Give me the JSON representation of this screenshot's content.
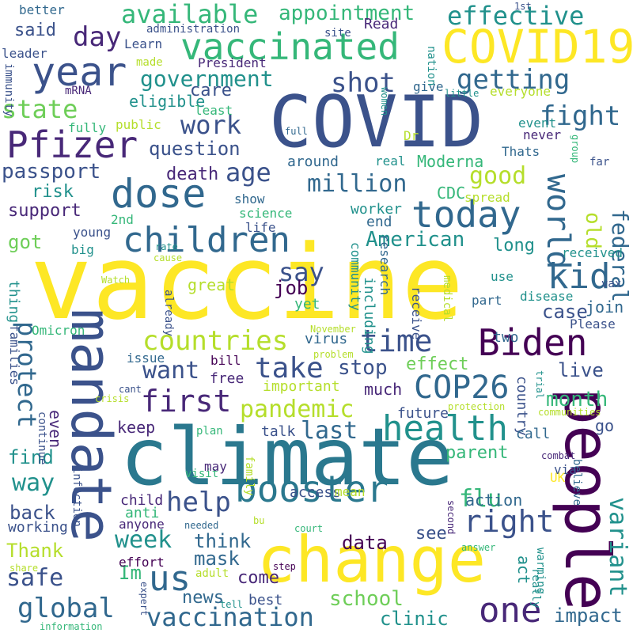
{
  "words": [
    {
      "text": "vaccine",
      "color": "#fde725"
    },
    {
      "text": "climate",
      "color": "#2a788e"
    },
    {
      "text": "COVID",
      "color": "#3b528b"
    },
    {
      "text": "change",
      "color": "#fde725"
    },
    {
      "text": "people",
      "color": "#440154"
    },
    {
      "text": "mandate",
      "color": "#3b528b"
    },
    {
      "text": "COVID19",
      "color": "#fde725"
    },
    {
      "text": "vaccinated",
      "color": "#35b779"
    },
    {
      "text": "booster",
      "color": "#2a788e"
    },
    {
      "text": "Biden",
      "color": "#440154"
    },
    {
      "text": "dose",
      "color": "#31688e"
    },
    {
      "text": "children",
      "color": "#31688e"
    },
    {
      "text": "year",
      "color": "#3b528b"
    },
    {
      "text": "today",
      "color": "#31688e"
    },
    {
      "text": "Pfizer",
      "color": "#482878"
    },
    {
      "text": "health",
      "color": "#21918c"
    },
    {
      "text": "COP26",
      "color": "#31688e"
    },
    {
      "text": "one",
      "color": "#482878"
    },
    {
      "text": "us",
      "color": "#31688e"
    },
    {
      "text": "kid",
      "color": "#31688e"
    },
    {
      "text": "world",
      "color": "#31688e"
    },
    {
      "text": "vaccination",
      "color": "#31688e"
    },
    {
      "text": "global",
      "color": "#31688e"
    },
    {
      "text": "time",
      "color": "#3b528b"
    },
    {
      "text": "first",
      "color": "#482878"
    },
    {
      "text": "help",
      "color": "#3b528b"
    },
    {
      "text": "right",
      "color": "#3b528b"
    },
    {
      "text": "take",
      "color": "#3b528b"
    },
    {
      "text": "countries",
      "color": "#b5de2b"
    },
    {
      "text": "available",
      "color": "#35b779"
    },
    {
      "text": "effective",
      "color": "#21918c"
    },
    {
      "text": "getting",
      "color": "#31688e"
    },
    {
      "text": "shot",
      "color": "#3b528b"
    },
    {
      "text": "government",
      "color": "#21918c"
    },
    {
      "text": "pandemic",
      "color": "#b5de2b"
    },
    {
      "text": "protect",
      "color": "#31688e"
    },
    {
      "text": "age",
      "color": "#3b528b"
    },
    {
      "text": "day",
      "color": "#482878"
    },
    {
      "text": "fight",
      "color": "#31688e"
    },
    {
      "text": "say",
      "color": "#3b528b"
    },
    {
      "text": "million",
      "color": "#31688e"
    },
    {
      "text": "work",
      "color": "#3b528b"
    },
    {
      "text": "American",
      "color": "#21918c"
    },
    {
      "text": "want",
      "color": "#3b528b"
    },
    {
      "text": "last",
      "color": "#31688e"
    },
    {
      "text": "week",
      "color": "#21918c"
    },
    {
      "text": "variant",
      "color": "#21918c"
    },
    {
      "text": "state",
      "color": "#6ece58"
    },
    {
      "text": "appointment",
      "color": "#35b779"
    },
    {
      "text": "good",
      "color": "#b5de2b"
    },
    {
      "text": "federal",
      "color": "#31688e"
    },
    {
      "text": "old",
      "color": "#b5de2b"
    },
    {
      "text": "stop",
      "color": "#3b528b"
    },
    {
      "text": "passport",
      "color": "#3b528b"
    },
    {
      "text": "question",
      "color": "#3b528b"
    },
    {
      "text": "month",
      "color": "#35b779"
    },
    {
      "text": "way",
      "color": "#21918c"
    },
    {
      "text": "safe",
      "color": "#3b528b"
    },
    {
      "text": "flu",
      "color": "#35b779"
    },
    {
      "text": "Thank",
      "color": "#b5de2b"
    },
    {
      "text": "school",
      "color": "#6ece58"
    },
    {
      "text": "clinic",
      "color": "#21918c"
    },
    {
      "text": "impact",
      "color": "#31688e"
    },
    {
      "text": "data",
      "color": "#440154"
    },
    {
      "text": "effect",
      "color": "#6ece58"
    },
    {
      "text": "death",
      "color": "#482878"
    },
    {
      "text": "case",
      "color": "#3b528b"
    },
    {
      "text": "live",
      "color": "#3b528b"
    },
    {
      "text": "said",
      "color": "#3b528b"
    },
    {
      "text": "got",
      "color": "#6ece58"
    },
    {
      "text": "think",
      "color": "#31688e"
    },
    {
      "text": "mask",
      "color": "#31688e"
    },
    {
      "text": "news",
      "color": "#31688e"
    },
    {
      "text": "even",
      "color": "#482878"
    },
    {
      "text": "find",
      "color": "#21918c"
    },
    {
      "text": "back",
      "color": "#3b528b"
    },
    {
      "text": "care",
      "color": "#3b528b"
    },
    {
      "text": "support",
      "color": "#482878"
    },
    {
      "text": "risk",
      "color": "#21918c"
    },
    {
      "text": "Moderna",
      "color": "#35b779"
    },
    {
      "text": "parent",
      "color": "#35b779"
    },
    {
      "text": "Im",
      "color": "#35b779"
    },
    {
      "text": "job",
      "color": "#440154"
    },
    {
      "text": "see",
      "color": "#3b528b"
    },
    {
      "text": "keep",
      "color": "#482878"
    },
    {
      "text": "come",
      "color": "#482878"
    },
    {
      "text": "long",
      "color": "#21918c"
    },
    {
      "text": "action",
      "color": "#31688e"
    },
    {
      "text": "act",
      "color": "#21918c"
    },
    {
      "text": "CDC",
      "color": "#35b779"
    },
    {
      "text": "much",
      "color": "#482878"
    },
    {
      "text": "eligible",
      "color": "#21918c"
    },
    {
      "text": "Learn",
      "color": "#3b528b"
    },
    {
      "text": "Read",
      "color": "#482878"
    },
    {
      "text": "around",
      "color": "#31688e"
    },
    {
      "text": "worker",
      "color": "#21918c"
    },
    {
      "text": "end",
      "color": "#31688e"
    },
    {
      "text": "great",
      "color": "#b5de2b"
    },
    {
      "text": "important",
      "color": "#b5de2b"
    },
    {
      "text": "go",
      "color": "#3b528b"
    },
    {
      "text": "best",
      "color": "#3b528b"
    },
    {
      "text": "two",
      "color": "#31688e"
    },
    {
      "text": "Please",
      "color": "#3b528b"
    },
    {
      "text": "join",
      "color": "#31688e"
    },
    {
      "text": "disease",
      "color": "#21918c"
    },
    {
      "text": "part",
      "color": "#31688e"
    },
    {
      "text": "use",
      "color": "#21918c"
    },
    {
      "text": "received",
      "color": "#21918c"
    },
    {
      "text": "country",
      "color": "#3b528b"
    },
    {
      "text": "future",
      "color": "#3b528b"
    },
    {
      "text": "call",
      "color": "#31688e"
    },
    {
      "text": "free",
      "color": "#482878"
    },
    {
      "text": "bill",
      "color": "#440154"
    },
    {
      "text": "issue",
      "color": "#31688e"
    },
    {
      "text": "talk",
      "color": "#3b528b"
    },
    {
      "text": "working",
      "color": "#3b528b"
    },
    {
      "text": "child",
      "color": "#482878"
    },
    {
      "text": "anti",
      "color": "#35b779"
    },
    {
      "text": "anyone",
      "color": "#482878"
    },
    {
      "text": "effort",
      "color": "#440154"
    },
    {
      "text": "access",
      "color": "#3b528b"
    },
    {
      "text": "including",
      "color": "#21918c"
    },
    {
      "text": "community",
      "color": "#21918c"
    },
    {
      "text": "research",
      "color": "#31688e"
    },
    {
      "text": "receive",
      "color": "#3b528b"
    },
    {
      "text": "virus",
      "color": "#31688e"
    },
    {
      "text": "yet",
      "color": "#35b779"
    },
    {
      "text": "thing",
      "color": "#21918c"
    },
    {
      "text": "life",
      "color": "#3b528b"
    },
    {
      "text": "young",
      "color": "#3b528b"
    },
    {
      "text": "big",
      "color": "#21918c"
    },
    {
      "text": "2nd",
      "color": "#35b779"
    },
    {
      "text": "science",
      "color": "#35b779"
    },
    {
      "text": "show",
      "color": "#31688e"
    },
    {
      "text": "spread",
      "color": "#b5de2b"
    },
    {
      "text": "real",
      "color": "#21918c"
    },
    {
      "text": "Dr",
      "color": "#b5de2b"
    },
    {
      "text": "Thats",
      "color": "#31688e"
    },
    {
      "text": "event",
      "color": "#21918c"
    },
    {
      "text": "never",
      "color": "#482878"
    },
    {
      "text": "everyone",
      "color": "#b5de2b"
    },
    {
      "text": "give",
      "color": "#31688e"
    },
    {
      "text": "public",
      "color": "#b5de2b"
    },
    {
      "text": "fully",
      "color": "#35b779"
    },
    {
      "text": "least",
      "color": "#35b779"
    },
    {
      "text": "made",
      "color": "#b5de2b"
    },
    {
      "text": "President",
      "color": "#482878"
    },
    {
      "text": "mRNA",
      "color": "#482878"
    },
    {
      "text": "leader",
      "color": "#3b528b"
    },
    {
      "text": "better",
      "color": "#31688e"
    },
    {
      "text": "administration",
      "color": "#3b528b"
    },
    {
      "text": "site",
      "color": "#3b528b"
    },
    {
      "text": "nation",
      "color": "#21918c"
    },
    {
      "text": "1st",
      "color": "#3b528b"
    },
    {
      "text": "immunity",
      "color": "#3b528b"
    },
    {
      "text": "little",
      "color": "#21918c"
    },
    {
      "text": "women",
      "color": "#21918c"
    },
    {
      "text": "full",
      "color": "#31688e"
    },
    {
      "text": "group",
      "color": "#35b779"
    },
    {
      "text": "far",
      "color": "#3b528b"
    },
    {
      "text": "vax",
      "color": "#3b528b"
    },
    {
      "text": "Omicron",
      "color": "#35b779"
    },
    {
      "text": "already",
      "color": "#3b528b"
    },
    {
      "text": "rate",
      "color": "#21918c"
    },
    {
      "text": "cause",
      "color": "#b5de2b"
    },
    {
      "text": "Watch",
      "color": "#b5de2b"
    },
    {
      "text": "November",
      "color": "#b5de2b"
    },
    {
      "text": "medical",
      "color": "#b5de2b"
    },
    {
      "text": "problem",
      "color": "#b5de2b"
    },
    {
      "text": "families",
      "color": "#3b528b"
    },
    {
      "text": "continue",
      "color": "#3b528b"
    },
    {
      "text": "crisis",
      "color": "#b5de2b"
    },
    {
      "text": "cant",
      "color": "#3b528b"
    },
    {
      "text": "trial",
      "color": "#21918c"
    },
    {
      "text": "protection",
      "color": "#b5de2b"
    },
    {
      "text": "communities",
      "color": "#b5de2b"
    },
    {
      "text": "combat",
      "color": "#482878"
    },
    {
      "text": "believe",
      "color": "#31688e"
    },
    {
      "text": "via",
      "color": "#3b528b"
    },
    {
      "text": "UK",
      "color": "#fde725"
    },
    {
      "text": "plan",
      "color": "#35b779"
    },
    {
      "text": "visit",
      "color": "#35b779"
    },
    {
      "text": "may",
      "color": "#482878"
    },
    {
      "text": "family",
      "color": "#b5de2b"
    },
    {
      "text": "mean",
      "color": "#b5de2b"
    },
    {
      "text": "infection",
      "color": "#3b528b"
    },
    {
      "text": "needed",
      "color": "#31688e"
    },
    {
      "text": "bu",
      "color": "#b5de2b"
    },
    {
      "text": "court",
      "color": "#35b779"
    },
    {
      "text": "second",
      "color": "#482878"
    },
    {
      "text": "answer",
      "color": "#35b779"
    },
    {
      "text": "warming",
      "color": "#21918c"
    },
    {
      "text": "really",
      "color": "#21918c"
    },
    {
      "text": "step",
      "color": "#440154"
    },
    {
      "text": "adult",
      "color": "#b5de2b"
    },
    {
      "text": "tell",
      "color": "#21918c"
    },
    {
      "text": "expert",
      "color": "#3b528b"
    },
    {
      "text": "share",
      "color": "#b5de2b"
    },
    {
      "text": "information",
      "color": "#35b779"
    }
  ]
}
